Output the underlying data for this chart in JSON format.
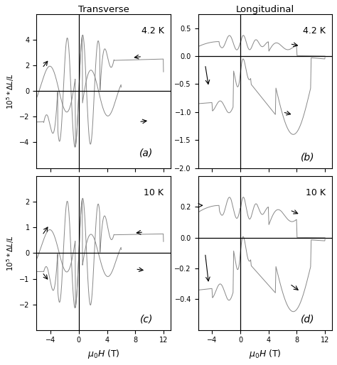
{
  "title_transverse": "Transverse",
  "title_longitudinal": "Longitudinal",
  "xlabel": "$\\mu_0H$ (T)",
  "ylabel_left": "$10^5*\\Delta L/L$",
  "panels": [
    "(a)",
    "(b)",
    "(c)",
    "(d)"
  ],
  "temps": [
    "4.2 K",
    "4.2 K",
    "10 K",
    "10 K"
  ],
  "xlim": [
    -6,
    13
  ],
  "xticks": [
    -4,
    0,
    4,
    8,
    12
  ],
  "ylims_a": [
    -6,
    6
  ],
  "yticks_a": [
    -4,
    -2,
    0,
    2,
    4
  ],
  "ylims_b": [
    -2.0,
    0.75
  ],
  "yticks_b": [
    -2.0,
    -1.5,
    -1.0,
    -0.5,
    0.0,
    0.5
  ],
  "ylims_c": [
    -3,
    3
  ],
  "yticks_c": [
    -2,
    -1,
    0,
    1,
    2
  ],
  "ylims_d": [
    -0.6,
    0.4
  ],
  "yticks_d": [
    -0.4,
    -0.2,
    0.0,
    0.2
  ],
  "line_color": "#888888",
  "bg_color": "#ffffff"
}
